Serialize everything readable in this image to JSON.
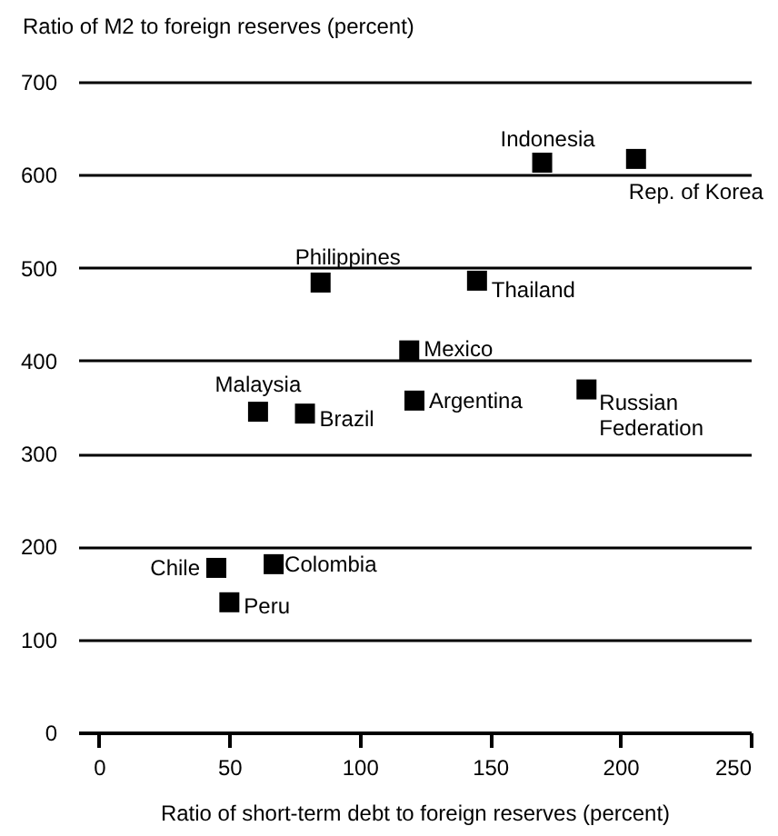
{
  "chart_data": {
    "type": "scatter",
    "xlabel": "Ratio of short-term debt to foreign reserves (percent)",
    "ylabel": "Ratio of M2 to foreign reserves (percent)",
    "xlim": [
      -8,
      250
    ],
    "ylim": [
      0,
      700
    ],
    "xticks": [
      0,
      50,
      100,
      150,
      200,
      250
    ],
    "yticks": [
      0,
      100,
      200,
      300,
      400,
      500,
      600,
      700
    ],
    "grid": "y",
    "marker": "square",
    "series": [
      {
        "name": "Indonesia",
        "color": "#000000",
        "x": [
          170
        ],
        "values": [
          613
        ]
      },
      {
        "name": "Rep. of Korea",
        "color": "#000000",
        "x": [
          206
        ],
        "values": [
          617
        ]
      },
      {
        "name": "Philippines",
        "color": "#000000",
        "x": [
          85
        ],
        "values": [
          484
        ]
      },
      {
        "name": "Thailand",
        "color": "#000000",
        "x": [
          145
        ],
        "values": [
          486
        ]
      },
      {
        "name": "Mexico",
        "color": "#000000",
        "x": [
          119
        ],
        "values": [
          411
        ]
      },
      {
        "name": "Malaysia",
        "color": "#000000",
        "x": [
          61
        ],
        "values": [
          345
        ]
      },
      {
        "name": "Brazil",
        "color": "#000000",
        "x": [
          79
        ],
        "values": [
          343
        ]
      },
      {
        "name": "Argentina",
        "color": "#000000",
        "x": [
          121
        ],
        "values": [
          357
        ]
      },
      {
        "name": "Russian Federation",
        "color": "#000000",
        "x": [
          187
        ],
        "values": [
          369
        ]
      },
      {
        "name": "Chile",
        "color": "#000000",
        "x": [
          45
        ],
        "values": [
          177
        ]
      },
      {
        "name": "Colombia",
        "color": "#000000",
        "x": [
          67
        ],
        "values": [
          181
        ]
      },
      {
        "name": "Peru",
        "color": "#000000",
        "x": [
          50
        ],
        "values": [
          140
        ]
      }
    ]
  }
}
